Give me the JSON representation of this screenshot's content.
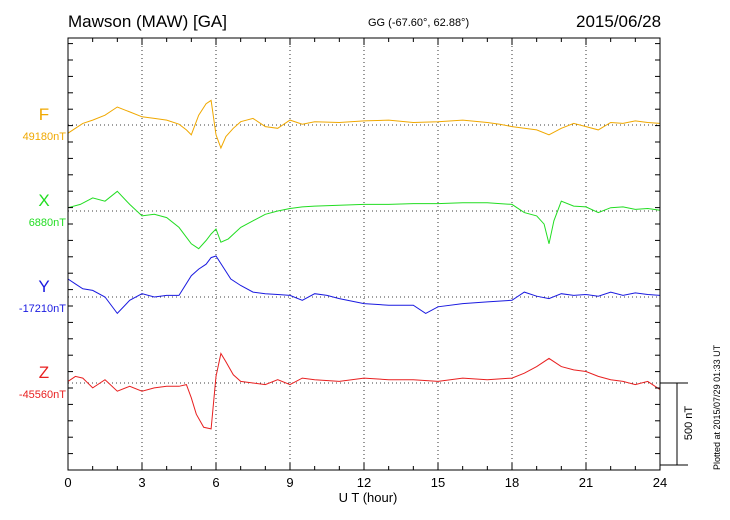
{
  "header": {
    "station": "Mawson (MAW)  [GA]",
    "coords": "GG (-67.60°,  62.88°)",
    "date": "2015/06/28"
  },
  "plotted_note": "Plotted at 2015/07/29 01:33 UT",
  "scale_label": "500 nT",
  "chart_data": {
    "type": "line",
    "title": "Mawson (MAW)  [GA]",
    "xlabel": "U T (hour)",
    "xlim": [
      0,
      24
    ],
    "xticks": [
      "0",
      "3",
      "6",
      "9",
      "12",
      "15",
      "18",
      "21",
      "24"
    ],
    "scale_bar_nT": 500,
    "grid": true,
    "series": [
      {
        "name": "F",
        "baseline_label": "49180nT",
        "color": "#f0a800",
        "x": [
          0,
          0.3,
          0.6,
          1,
          1.5,
          2,
          2.5,
          3,
          3.5,
          4,
          4.5,
          4.8,
          5,
          5.3,
          5.6,
          5.8,
          6,
          6.2,
          6.4,
          6.7,
          7,
          7.5,
          8,
          8.5,
          9,
          9.5,
          10,
          11,
          12,
          13,
          14,
          15,
          16,
          17,
          17.5,
          18,
          18.5,
          19,
          19.5,
          20,
          20.5,
          21,
          21.5,
          22,
          22.5,
          23,
          23.5,
          24
        ],
        "values": [
          -50,
          -20,
          10,
          30,
          60,
          110,
          80,
          50,
          40,
          30,
          5,
          -30,
          -60,
          60,
          130,
          150,
          -60,
          -140,
          -70,
          -20,
          20,
          40,
          -10,
          -20,
          30,
          5,
          20,
          15,
          25,
          30,
          15,
          20,
          30,
          15,
          5,
          -10,
          -20,
          -30,
          -60,
          -20,
          10,
          -10,
          -30,
          15,
          10,
          25,
          15,
          10
        ]
      },
      {
        "name": "X",
        "baseline_label": "6880nT",
        "color": "#22dd22",
        "x": [
          0,
          0.5,
          1,
          1.5,
          2,
          2.5,
          3,
          3.5,
          4,
          4.5,
          5,
          5.3,
          5.6,
          5.8,
          6,
          6.2,
          6.5,
          7,
          7.5,
          8,
          8.5,
          9,
          9.5,
          10,
          11,
          12,
          13,
          14,
          15,
          16,
          17,
          17.5,
          18,
          18.5,
          19,
          19.3,
          19.5,
          19.7,
          20,
          20.5,
          21,
          21.5,
          22,
          22.5,
          23,
          23.5,
          24
        ],
        "values": [
          20,
          40,
          80,
          60,
          120,
          40,
          -30,
          -20,
          -40,
          -100,
          -200,
          -230,
          -180,
          -140,
          -110,
          -190,
          -170,
          -100,
          -60,
          -20,
          0,
          15,
          25,
          30,
          35,
          40,
          40,
          45,
          45,
          50,
          50,
          45,
          40,
          -10,
          -30,
          -80,
          -200,
          -60,
          60,
          30,
          25,
          -10,
          20,
          25,
          10,
          15,
          5
        ]
      },
      {
        "name": "Y",
        "baseline_label": "-17210nT",
        "color": "#1a1ae0",
        "x": [
          0,
          0.3,
          0.6,
          1,
          1.5,
          2,
          2.5,
          3,
          3.5,
          4,
          4.5,
          5,
          5.3,
          5.6,
          5.8,
          6,
          6.3,
          6.6,
          7,
          7.5,
          8,
          8.5,
          9,
          9.5,
          10,
          10.5,
          11,
          12,
          13,
          14,
          14.5,
          15,
          16,
          17,
          18,
          18.5,
          19,
          19.5,
          20,
          20.5,
          21,
          21.5,
          22,
          22.5,
          23,
          23.5,
          24
        ],
        "values": [
          110,
          80,
          50,
          40,
          0,
          -100,
          -20,
          20,
          0,
          10,
          10,
          130,
          170,
          200,
          240,
          250,
          180,
          110,
          70,
          30,
          20,
          15,
          10,
          -20,
          20,
          10,
          -10,
          -40,
          -50,
          -50,
          -100,
          -60,
          -40,
          -30,
          -20,
          30,
          5,
          -10,
          20,
          10,
          15,
          5,
          30,
          10,
          25,
          15,
          10
        ]
      },
      {
        "name": "Z",
        "baseline_label": "-45560nT",
        "color": "#e82020",
        "x": [
          0,
          0.3,
          0.6,
          1,
          1.5,
          2,
          2.5,
          3,
          3.5,
          4,
          4.5,
          4.8,
          5,
          5.2,
          5.5,
          5.8,
          6,
          6.2,
          6.4,
          6.7,
          7,
          7.5,
          8,
          8.5,
          9,
          9.5,
          10,
          11,
          12,
          13,
          14,
          15,
          16,
          17,
          18,
          18.5,
          19,
          19.5,
          20,
          20.5,
          21,
          21.5,
          22,
          22.5,
          23,
          23.5,
          24
        ],
        "values": [
          10,
          40,
          30,
          -30,
          20,
          -50,
          -20,
          -50,
          -30,
          -20,
          -20,
          -10,
          -90,
          -190,
          -270,
          -280,
          40,
          180,
          130,
          50,
          10,
          0,
          -10,
          20,
          -10,
          30,
          20,
          10,
          30,
          20,
          20,
          10,
          30,
          20,
          30,
          60,
          100,
          150,
          100,
          80,
          70,
          40,
          20,
          10,
          -10,
          10,
          -40
        ]
      }
    ]
  }
}
